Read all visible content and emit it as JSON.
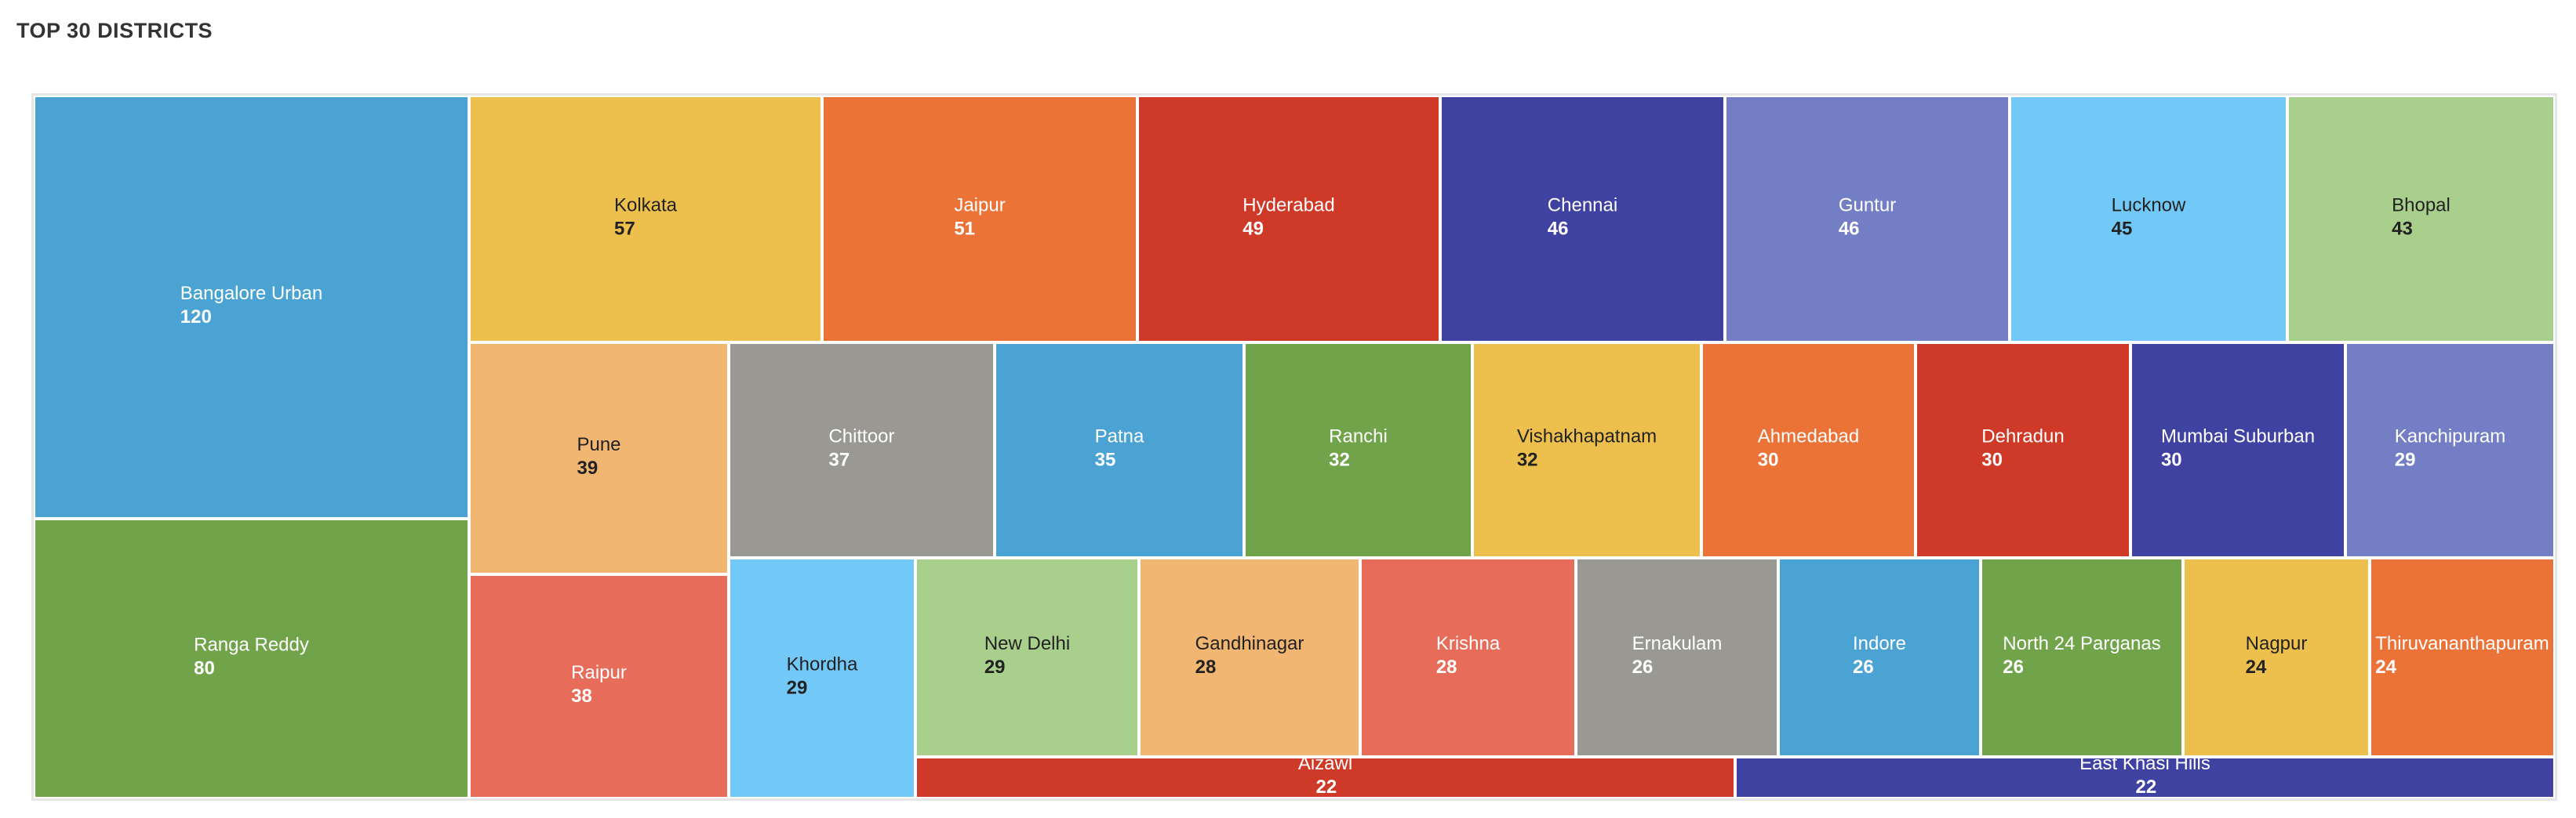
{
  "title": "TOP 30 DISTRICTS",
  "chart_data": {
    "type": "treemap",
    "title": "TOP 30 DISTRICTS",
    "items": [
      {
        "name": "Bangalore Urban",
        "value": 120,
        "color": "#4aa3d2",
        "text": "light"
      },
      {
        "name": "Ranga Reddy",
        "value": 80,
        "color": "#70a34a",
        "text": "light"
      },
      {
        "name": "Kolkata",
        "value": 57,
        "color": "#edc04e",
        "text": "dark"
      },
      {
        "name": "Jaipur",
        "value": 51,
        "color": "#ec7338",
        "text": "light"
      },
      {
        "name": "Hyderabad",
        "value": 49,
        "color": "#cf3a28",
        "text": "light"
      },
      {
        "name": "Chennai",
        "value": 46,
        "color": "#4042a1",
        "text": "light"
      },
      {
        "name": "Guntur",
        "value": 46,
        "color": "#737ec4",
        "text": "light"
      },
      {
        "name": "Lucknow",
        "value": 45,
        "color": "#72c8f6",
        "text": "dark"
      },
      {
        "name": "Bhopal",
        "value": 43,
        "color": "#a9cf8d",
        "text": "dark"
      },
      {
        "name": "Pune",
        "value": 39,
        "color": "#f2b673",
        "text": "dark"
      },
      {
        "name": "Raipur",
        "value": 38,
        "color": "#e86c5a",
        "text": "light"
      },
      {
        "name": "Chittoor",
        "value": 37,
        "color": "#999893",
        "text": "light"
      },
      {
        "name": "Patna",
        "value": 35,
        "color": "#4aa3d2",
        "text": "light"
      },
      {
        "name": "Ranchi",
        "value": 32,
        "color": "#70a34a",
        "text": "light"
      },
      {
        "name": "Vishakhapatnam",
        "value": 32,
        "color": "#edc04e",
        "text": "dark"
      },
      {
        "name": "Ahmedabad",
        "value": 30,
        "color": "#ec7338",
        "text": "light"
      },
      {
        "name": "Dehradun",
        "value": 30,
        "color": "#cf3a28",
        "text": "light"
      },
      {
        "name": "Mumbai Suburban",
        "value": 30,
        "color": "#4042a1",
        "text": "light"
      },
      {
        "name": "Kanchipuram",
        "value": 29,
        "color": "#737ec4",
        "text": "light"
      },
      {
        "name": "Khordha",
        "value": 29,
        "color": "#72c8f6",
        "text": "dark"
      },
      {
        "name": "New Delhi",
        "value": 29,
        "color": "#a9cf8d",
        "text": "dark"
      },
      {
        "name": "Gandhinagar",
        "value": 28,
        "color": "#f2b673",
        "text": "dark"
      },
      {
        "name": "Krishna",
        "value": 28,
        "color": "#e86c5a",
        "text": "light"
      },
      {
        "name": "Ernakulam",
        "value": 26,
        "color": "#999893",
        "text": "light"
      },
      {
        "name": "Indore",
        "value": 26,
        "color": "#4aa3d2",
        "text": "light"
      },
      {
        "name": "North 24 Parganas",
        "value": 26,
        "color": "#70a34a",
        "text": "light"
      },
      {
        "name": "Nagpur",
        "value": 24,
        "color": "#edc04e",
        "text": "dark"
      },
      {
        "name": "Thiruvananthapuram",
        "value": 24,
        "color": "#ec7338",
        "text": "light"
      },
      {
        "name": "Aizawl",
        "value": 22,
        "color": "#cf3a28",
        "text": "light"
      },
      {
        "name": "East Khasi Hills",
        "value": 22,
        "color": "#4042a1",
        "text": "light"
      }
    ]
  }
}
